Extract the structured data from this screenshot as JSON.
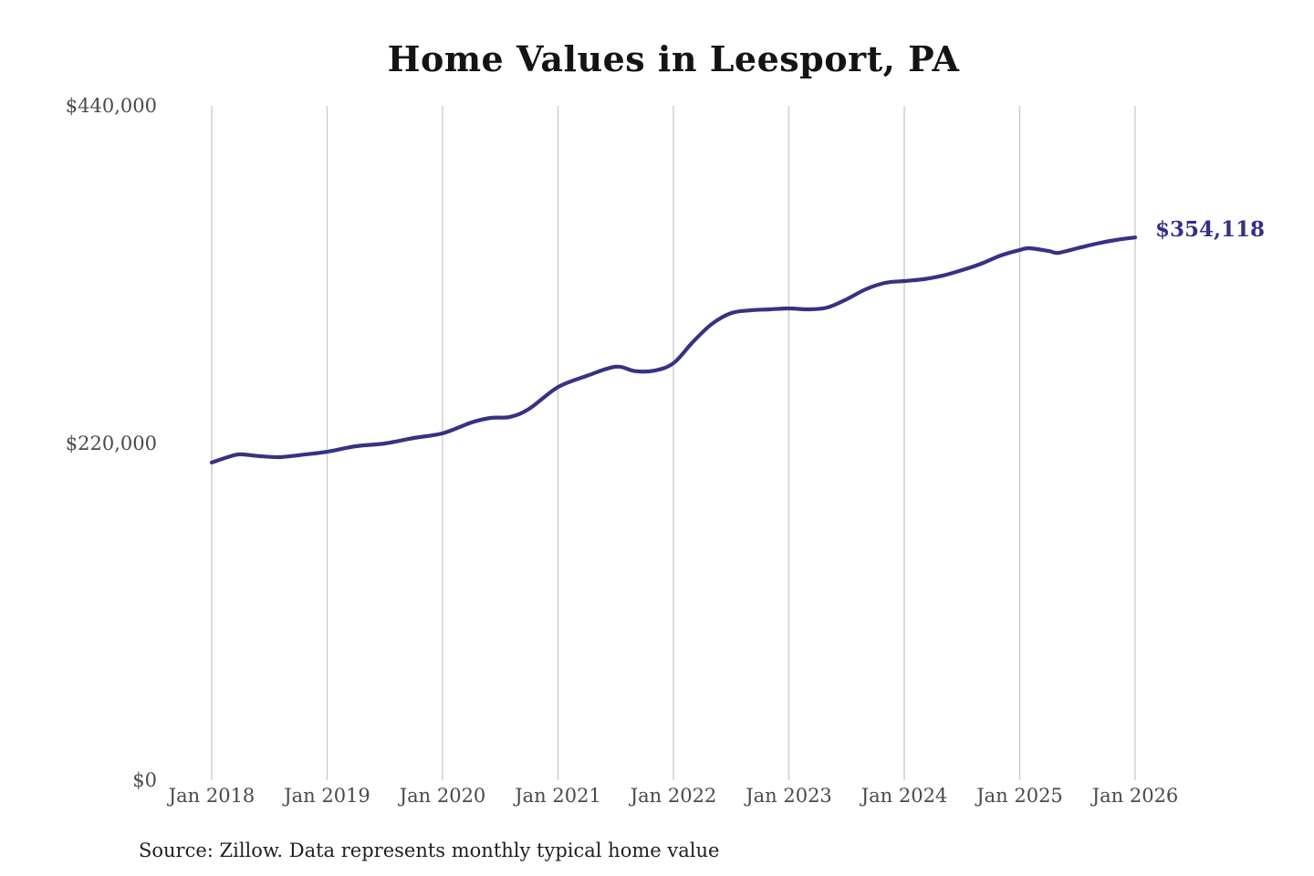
{
  "header": {
    "title": "Home Values in Leesport, PA"
  },
  "footer": {
    "source": "Source: Zillow. Data represents monthly typical home value"
  },
  "chart_data": {
    "type": "line",
    "title": "Home Values in Leesport, PA",
    "series_name": "Monthly typical home value",
    "xlabel": "",
    "ylabel": "",
    "ylim": [
      0,
      440000
    ],
    "x_range": [
      "2018-01",
      "2026-01"
    ],
    "grid": "vertical-only",
    "legend": "none",
    "end_label": "$354,118",
    "end_value": 354118,
    "colors": {
      "line": "#373186",
      "grid": "#cccccc",
      "tick_text": "#4a4a4a",
      "title_text": "#141414",
      "end_label_text": "#333088",
      "source_text": "#1f1f1f",
      "background": "#ffffff"
    },
    "y_ticks": [
      {
        "label": "$440,000",
        "value": 440000
      },
      {
        "label": "$220,000",
        "value": 220000
      },
      {
        "label": "$0",
        "value": 0
      }
    ],
    "x_ticks": [
      {
        "label": "Jan 2018",
        "date": "2018-01"
      },
      {
        "label": "Jan 2019",
        "date": "2019-01"
      },
      {
        "label": "Jan 2020",
        "date": "2020-01"
      },
      {
        "label": "Jan 2021",
        "date": "2021-01"
      },
      {
        "label": "Jan 2022",
        "date": "2022-01"
      },
      {
        "label": "Jan 2023",
        "date": "2023-01"
      },
      {
        "label": "Jan 2024",
        "date": "2024-01"
      },
      {
        "label": "Jan 2025",
        "date": "2025-01"
      },
      {
        "label": "Jan 2026",
        "date": "2026-01"
      }
    ],
    "points": [
      {
        "date": "2018-01",
        "value": 207300
      },
      {
        "date": "2018-03",
        "value": 211400
      },
      {
        "date": "2018-04",
        "value": 212600
      },
      {
        "date": "2018-06",
        "value": 211400
      },
      {
        "date": "2018-08",
        "value": 210800
      },
      {
        "date": "2018-10",
        "value": 212000
      },
      {
        "date": "2019-01",
        "value": 214300
      },
      {
        "date": "2019-04",
        "value": 217900
      },
      {
        "date": "2019-07",
        "value": 219700
      },
      {
        "date": "2019-10",
        "value": 223300
      },
      {
        "date": "2020-01",
        "value": 226300
      },
      {
        "date": "2020-04",
        "value": 233400
      },
      {
        "date": "2020-06",
        "value": 236400
      },
      {
        "date": "2020-08",
        "value": 237000
      },
      {
        "date": "2020-10",
        "value": 242300
      },
      {
        "date": "2021-01",
        "value": 256500
      },
      {
        "date": "2021-04",
        "value": 263800
      },
      {
        "date": "2021-07",
        "value": 269800
      },
      {
        "date": "2021-09",
        "value": 266900
      },
      {
        "date": "2021-11",
        "value": 267200
      },
      {
        "date": "2022-01",
        "value": 272100
      },
      {
        "date": "2022-03",
        "value": 285800
      },
      {
        "date": "2022-05",
        "value": 297700
      },
      {
        "date": "2022-07",
        "value": 304800
      },
      {
        "date": "2022-09",
        "value": 306600
      },
      {
        "date": "2022-11",
        "value": 307200
      },
      {
        "date": "2023-01",
        "value": 307800
      },
      {
        "date": "2023-03",
        "value": 307200
      },
      {
        "date": "2023-05",
        "value": 308400
      },
      {
        "date": "2023-07",
        "value": 313800
      },
      {
        "date": "2023-09",
        "value": 320300
      },
      {
        "date": "2023-11",
        "value": 324500
      },
      {
        "date": "2024-01",
        "value": 325700
      },
      {
        "date": "2024-03",
        "value": 326900
      },
      {
        "date": "2024-05",
        "value": 329200
      },
      {
        "date": "2024-07",
        "value": 332800
      },
      {
        "date": "2024-09",
        "value": 337000
      },
      {
        "date": "2024-11",
        "value": 342300
      },
      {
        "date": "2025-01",
        "value": 345900
      },
      {
        "date": "2025-02",
        "value": 347100
      },
      {
        "date": "2025-04",
        "value": 345300
      },
      {
        "date": "2025-05",
        "value": 344100
      },
      {
        "date": "2025-07",
        "value": 347100
      },
      {
        "date": "2025-09",
        "value": 350100
      },
      {
        "date": "2025-11",
        "value": 352500
      },
      {
        "date": "2026-01",
        "value": 354118
      }
    ]
  }
}
